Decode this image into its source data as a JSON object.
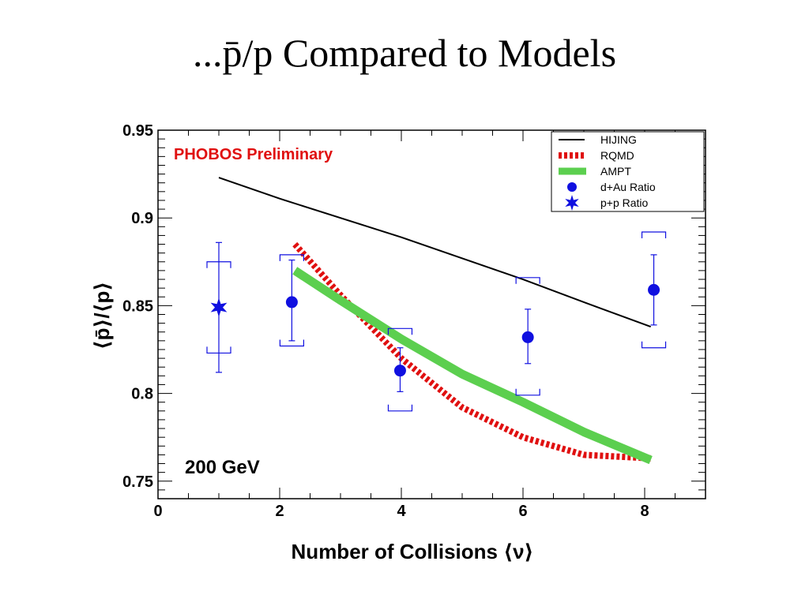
{
  "slide": {
    "title": "...p̄/p Compared to Models"
  },
  "chart_data": {
    "type": "line",
    "xlabel": "Number of Collisions ⟨ν⟩",
    "ylabel": "⟨p̄⟩/⟨p⟩",
    "xlim": [
      0,
      9
    ],
    "ylim": [
      0.74,
      0.95
    ],
    "x_ticks": [
      "0",
      "2",
      "4",
      "6",
      "8"
    ],
    "y_ticks": [
      "0.75",
      "0.8",
      "0.85",
      "0.9",
      "0.95"
    ],
    "grid": false,
    "legend_position": "top-right",
    "annotations": {
      "preliminary": "PHOBOS Preliminary",
      "energy": "200 GeV"
    },
    "series": [
      {
        "name": "HIJING",
        "kind": "line",
        "color": "#000000",
        "points": [
          [
            1.0,
            0.923
          ],
          [
            2.0,
            0.911
          ],
          [
            4.0,
            0.889
          ],
          [
            6.0,
            0.865
          ],
          [
            7.0,
            0.852
          ],
          [
            8.1,
            0.838
          ]
        ]
      },
      {
        "name": "RQMD",
        "kind": "dashed-line",
        "color": "#e01010",
        "points": [
          [
            2.25,
            0.885
          ],
          [
            3.0,
            0.856
          ],
          [
            4.0,
            0.82
          ],
          [
            5.0,
            0.792
          ],
          [
            6.0,
            0.775
          ],
          [
            7.0,
            0.765
          ],
          [
            8.1,
            0.763
          ]
        ]
      },
      {
        "name": "AMPT",
        "kind": "thick-line",
        "color": "#5ccf4f",
        "points": [
          [
            2.25,
            0.87
          ],
          [
            3.0,
            0.853
          ],
          [
            4.0,
            0.831
          ],
          [
            5.0,
            0.811
          ],
          [
            6.0,
            0.795
          ],
          [
            7.0,
            0.778
          ],
          [
            8.1,
            0.762
          ]
        ]
      },
      {
        "name": "d+Au Ratio",
        "kind": "points",
        "marker": "circle",
        "color": "#1010e0",
        "points": [
          {
            "x": 2.2,
            "y": 0.852,
            "err_lo": 0.83,
            "err_hi": 0.876,
            "sys_lo": 0.827,
            "sys_hi": 0.879
          },
          {
            "x": 3.98,
            "y": 0.813,
            "err_lo": 0.801,
            "err_hi": 0.826,
            "sys_lo": 0.79,
            "sys_hi": 0.837
          },
          {
            "x": 6.08,
            "y": 0.832,
            "err_lo": 0.817,
            "err_hi": 0.848,
            "sys_lo": 0.799,
            "sys_hi": 0.866
          },
          {
            "x": 8.15,
            "y": 0.859,
            "err_lo": 0.839,
            "err_hi": 0.879,
            "sys_lo": 0.826,
            "sys_hi": 0.892
          }
        ]
      },
      {
        "name": "p+p Ratio",
        "kind": "points",
        "marker": "star",
        "color": "#1010e0",
        "points": [
          {
            "x": 1.0,
            "y": 0.849,
            "err_lo": 0.812,
            "err_hi": 0.886,
            "sys_lo": 0.823,
            "sys_hi": 0.875
          }
        ]
      }
    ]
  }
}
